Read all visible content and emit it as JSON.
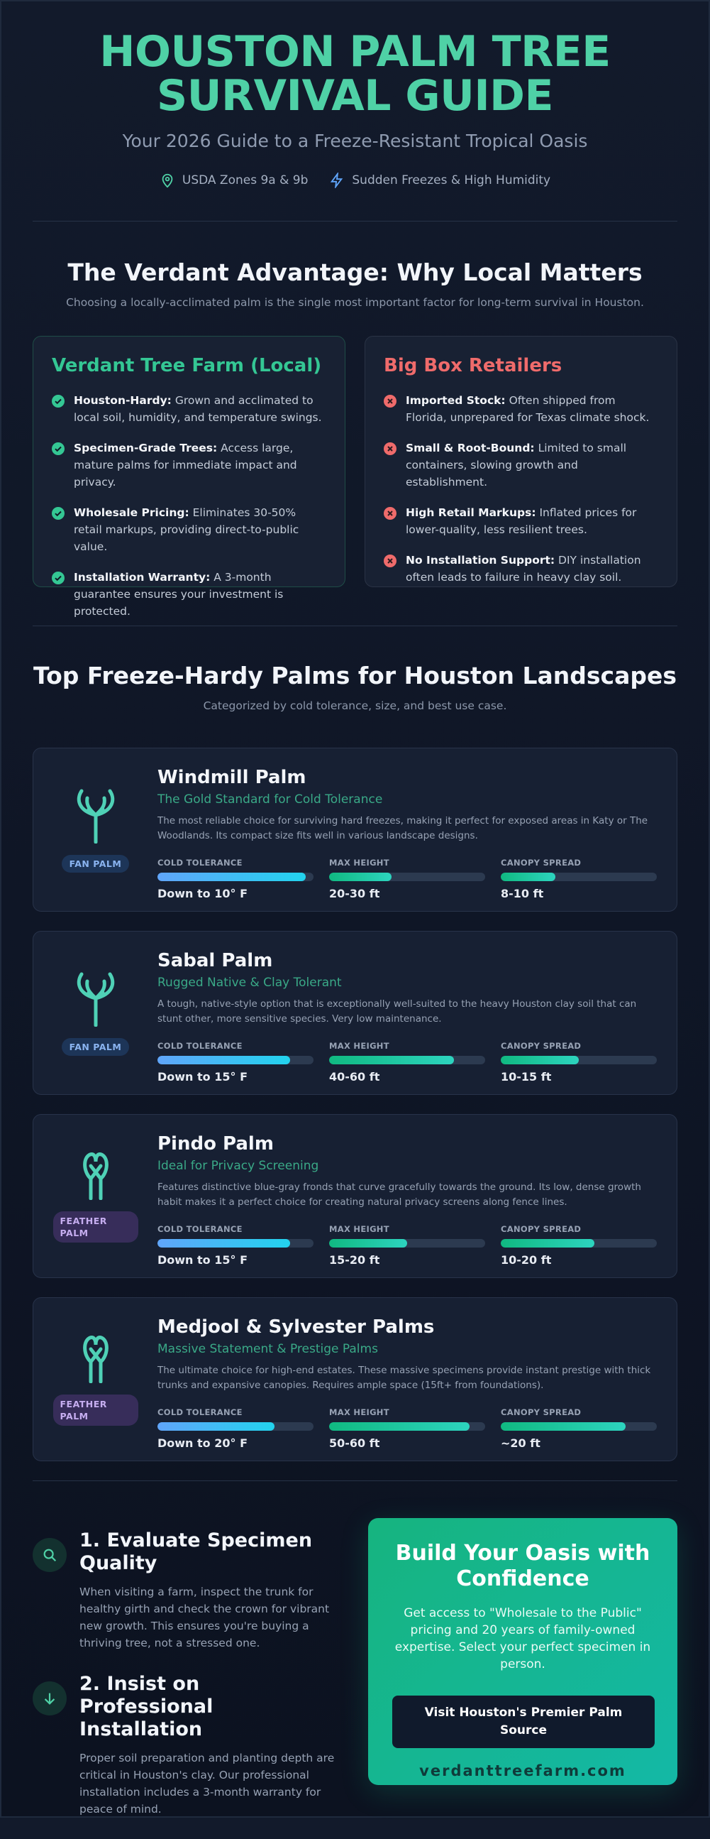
{
  "header": {
    "title": "HOUSTON PALM TREE SURVIVAL GUIDE",
    "subtitle": "Your 2026 Guide to a Freeze-Resistant Tropical Oasis",
    "badges": [
      "USDA Zones 9a & 9b",
      "Sudden Freezes & High Humidity"
    ]
  },
  "advantage": {
    "title": "The Verdant Advantage: Why Local Matters",
    "subtitle": "Choosing a locally-acclimated palm is the single most important factor for long-term survival in Houston.",
    "cards": [
      {
        "title": "Verdant Tree Farm (Local)",
        "items": [
          {
            "label": "Houston-Hardy:",
            "text": "Grown and acclimated to local soil, humidity, and temperature swings."
          },
          {
            "label": "Specimen-Grade Trees:",
            "text": "Access large, mature palms for immediate impact and privacy."
          },
          {
            "label": "Wholesale Pricing:",
            "text": "Eliminates 30-50% retail markups, providing direct-to-public value."
          },
          {
            "label": "Installation Warranty:",
            "text": "A 3-month guarantee ensures your investment is protected."
          }
        ]
      },
      {
        "title": "Big Box Retailers",
        "items": [
          {
            "label": "Imported Stock:",
            "text": "Often shipped from Florida, unprepared for Texas climate shock."
          },
          {
            "label": "Small & Root-Bound:",
            "text": "Limited to small containers, slowing growth and establishment."
          },
          {
            "label": "High Retail Markups:",
            "text": "Inflated prices for lower-quality, less resilient trees."
          },
          {
            "label": "No Installation Support:",
            "text": "DIY installation often leads to failure in heavy clay soil."
          }
        ]
      }
    ]
  },
  "palms": {
    "title": "Top Freeze-Hardy Palms for Houston Landscapes",
    "subtitle": "Categorized by cold tolerance, size, and best use case.",
    "items": [
      {
        "name": "Windmill Palm",
        "tagline": "The Gold Standard for Cold Tolerance",
        "description": "The most reliable choice for surviving hard freezes, making it perfect for exposed areas in Katy or The Woodlands. Its compact size fits well in various landscape designs.",
        "category": "FAN PALM",
        "stats": [
          {
            "label": "COLD TOLERANCE",
            "value": "Down to 10° F",
            "level": 95
          },
          {
            "label": "MAX HEIGHT",
            "value": "20-30 ft",
            "level": 40
          },
          {
            "label": "CANOPY SPREAD",
            "value": "8-10 ft",
            "level": 35
          }
        ]
      },
      {
        "name": "Sabal Palm",
        "tagline": "Rugged Native & Clay Tolerant",
        "description": "A tough, native-style option that is exceptionally well-suited to the heavy Houston clay soil that can stunt other, more sensitive species. Very low maintenance.",
        "category": "FAN PALM",
        "stats": [
          {
            "label": "COLD TOLERANCE",
            "value": "Down to 15° F",
            "level": 85
          },
          {
            "label": "MAX HEIGHT",
            "value": "40-60 ft",
            "level": 80
          },
          {
            "label": "CANOPY SPREAD",
            "value": "10-15 ft",
            "level": 50
          }
        ]
      },
      {
        "name": "Pindo Palm",
        "tagline": "Ideal for Privacy Screening",
        "description": "Features distinctive blue-gray fronds that curve gracefully towards the ground. Its low, dense growth habit makes it a perfect choice for creating natural privacy screens along fence lines.",
        "category": "FEATHER PALM",
        "stats": [
          {
            "label": "COLD TOLERANCE",
            "value": "Down to 15° F",
            "level": 85
          },
          {
            "label": "MAX HEIGHT",
            "value": "15-20 ft",
            "level": 50
          },
          {
            "label": "CANOPY SPREAD",
            "value": "10-20 ft",
            "level": 60
          }
        ]
      },
      {
        "name": "Medjool & Sylvester Palms",
        "tagline": "Massive Statement & Prestige Palms",
        "description": "The ultimate choice for high-end estates. These massive specimens provide instant prestige with thick trunks and expansive canopies. Requires ample space (15ft+ from foundations).",
        "category": "FEATHER PALM",
        "stats": [
          {
            "label": "COLD TOLERANCE",
            "value": "Down to 20° F",
            "level": 75
          },
          {
            "label": "MAX HEIGHT",
            "value": "50-60 ft",
            "level": 90
          },
          {
            "label": "CANOPY SPREAD",
            "value": "~20 ft",
            "level": 80
          }
        ]
      }
    ]
  },
  "steps": [
    {
      "title": "1. Evaluate Specimen Quality",
      "text": "When visiting a farm, inspect the trunk for healthy girth and check the crown for vibrant new growth. This ensures you're buying a thriving tree, not a stressed one."
    },
    {
      "title": "2. Insist on Professional Installation",
      "text": "Proper soil preparation and planting depth are critical in Houston's clay. Our professional installation includes a 3-month warranty for peace of mind."
    }
  ],
  "cta": {
    "title": "Build Your Oasis with Confidence",
    "text": "Get access to \"Wholesale to the Public\" pricing and 20 years of family-owned expertise. Select your perfect specimen in person.",
    "button": "Visit Houston's Premier Palm Source",
    "url": "verdanttreefarm.com"
  }
}
